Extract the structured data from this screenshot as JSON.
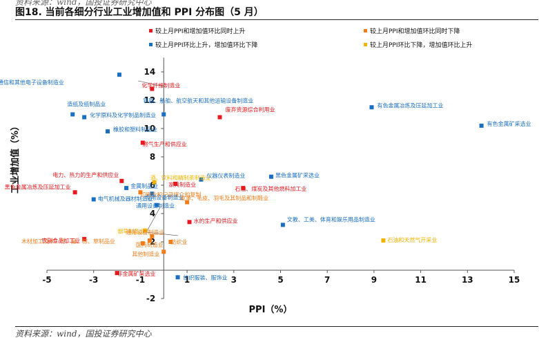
{
  "header": {
    "source_top": "资料来源：wind，国投证券研究中心",
    "figure_title": "图18. 当前各细分行业工业增加值和 PPI 分布图（5 月）",
    "source_bottom": "资料来源：wind，国投证券研究中心"
  },
  "chart_data": {
    "type": "scatter",
    "title": "",
    "xlabel": "PPI（%）",
    "ylabel": "工业增加值（%）",
    "xlim": [
      -5,
      15
    ],
    "ylim": [
      -2,
      15
    ],
    "xticks": [
      -5,
      -3,
      -1,
      1,
      3,
      5,
      7,
      9,
      11,
      13,
      15
    ],
    "yticks": [
      -2,
      2,
      4,
      6,
      8,
      10,
      12,
      14
    ],
    "grid": false,
    "legend_position": "top",
    "colors": {
      "both_up": "#e8191e",
      "both_down": "#f07d1a",
      "ppi_up_va_down": "#1a6fc3",
      "ppi_down_va_up": "#f5b300"
    },
    "legend": [
      {
        "key": "both_up",
        "label": "较上月PPI和增加值环比同时上升"
      },
      {
        "key": "both_down",
        "label": "较上月PPI和增加值环比同时下降"
      },
      {
        "key": "ppi_up_va_down",
        "label": "较上月PPI环比上升，增加值环比下降"
      },
      {
        "key": "ppi_down_va_up",
        "label": "较上月PPI环比下降，增加值环比上升"
      }
    ],
    "points": [
      {
        "label": "计算机、通信和其他电子设备制造业",
        "x": -1.9,
        "y": 13.8,
        "series": "ppi_up_va_down"
      },
      {
        "label": "化学纤维制造业",
        "x": -0.5,
        "y": 12.8,
        "series": "both_up"
      },
      {
        "label": "铁路、船舶、航空航天和其他运输设备制造业",
        "x": 0.0,
        "y": 11.0,
        "series": "ppi_up_va_down"
      },
      {
        "label": "废弃资源综合利用业",
        "x": 2.4,
        "y": 10.8,
        "series": "both_up"
      },
      {
        "label": "有色金属冶炼及压延加工业",
        "x": 8.9,
        "y": 11.5,
        "series": "ppi_up_va_down"
      },
      {
        "label": "有色金属矿采选业",
        "x": 13.6,
        "y": 10.2,
        "series": "ppi_up_va_down"
      },
      {
        "label": "造纸及纸制品业",
        "x": -3.9,
        "y": 11.0,
        "series": "ppi_up_va_down"
      },
      {
        "label": "化学原料及化学制品制造业",
        "x": -3.4,
        "y": 10.8,
        "series": "ppi_up_va_down"
      },
      {
        "label": "橡胶和塑料制品业",
        "x": -2.4,
        "y": 9.8,
        "series": "ppi_up_va_down"
      },
      {
        "label": "燃气生产和供应业",
        "x": -0.9,
        "y": 9.0,
        "series": "both_up"
      },
      {
        "label": "电力、热力的生产和供应业",
        "x": -1.8,
        "y": 6.3,
        "series": "both_up"
      },
      {
        "label": "酒、饮料和精制茶制造业",
        "x": -0.4,
        "y": 6.2,
        "series": "ppi_down_va_up"
      },
      {
        "label": "仪器仪表制造业",
        "x": 1.6,
        "y": 6.4,
        "series": "ppi_up_va_down"
      },
      {
        "label": "黑色金属矿采选业",
        "x": 4.6,
        "y": 6.6,
        "series": "ppi_up_va_down"
      },
      {
        "label": "家具制造业",
        "x": 0.5,
        "y": 6.1,
        "series": "both_up"
      },
      {
        "label": "石油、煤炭及其他燃料加工业",
        "x": 3.4,
        "y": 5.8,
        "series": "both_up"
      },
      {
        "label": "金属制品业",
        "x": -1.6,
        "y": 5.8,
        "series": "ppi_up_va_down"
      },
      {
        "label": "黑色金属冶炼及压延加工业",
        "x": -3.8,
        "y": 5.5,
        "series": "both_up"
      },
      {
        "label": "印刷业和记录媒介的复制",
        "x": -1.0,
        "y": 5.5,
        "series": "both_down"
      },
      {
        "label": "专用设备制造业",
        "x": -0.5,
        "y": 5.4,
        "series": "ppi_up_va_down"
      },
      {
        "label": "皮革、毛皮、羽毛及其制品和制鞋业",
        "x": 1.0,
        "y": 4.8,
        "series": "both_down"
      },
      {
        "label": "电气机械及器材制造业",
        "x": -3.0,
        "y": 5.0,
        "series": "ppi_up_va_down"
      },
      {
        "label": "通用设备制造业",
        "x": -0.3,
        "y": 4.6,
        "series": "ppi_up_va_down"
      },
      {
        "label": "水的生产和供应业",
        "x": 1.1,
        "y": 3.4,
        "series": "both_up"
      },
      {
        "label": "文教、工美、体育和娱乐用品制造业",
        "x": 5.1,
        "y": 3.2,
        "series": "ppi_up_va_down"
      },
      {
        "label": "烟草制品业",
        "x": -0.8,
        "y": 2.8,
        "series": "ppi_down_va_up"
      },
      {
        "label": "通用设备制造业",
        "x": -0.5,
        "y": 2.4,
        "series": "both_down"
      },
      {
        "label": "木材加工及木、竹、藤、棕、草制品业",
        "x": -0.6,
        "y": 2.1,
        "series": "both_down"
      },
      {
        "label": "农副食品加工业",
        "x": -3.4,
        "y": 2.2,
        "series": "both_up"
      },
      {
        "label": "医药制造业",
        "x": -0.9,
        "y": 1.9,
        "series": "both_down"
      },
      {
        "label": "纺织业",
        "x": 0.3,
        "y": 2.0,
        "series": "both_down"
      },
      {
        "label": "石油和天然气开采业",
        "x": 9.4,
        "y": 2.1,
        "series": "ppi_down_va_up"
      },
      {
        "label": "其他制造业",
        "x": 0.0,
        "y": 1.3,
        "series": "both_down"
      },
      {
        "label": "非金属矿采选业",
        "x": -2.0,
        "y": -0.2,
        "series": "both_up"
      },
      {
        "label": "纺织服装、服饰业",
        "x": 0.6,
        "y": -0.5,
        "series": "ppi_up_va_down"
      }
    ]
  }
}
